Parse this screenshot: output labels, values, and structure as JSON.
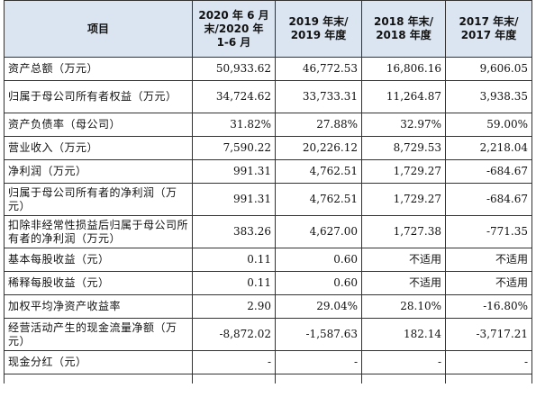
{
  "header": {
    "item": "项目",
    "col1": "2020 年 6 月\n末/2020 年\n1-6 月",
    "col2": "2019 年末/\n2019 年度",
    "col3": "2018 年末/\n2018 年度",
    "col4": "2017 年末/\n2017 年度"
  },
  "rows": [
    {
      "label": "资产总额（万元）",
      "v": [
        "50,933.62",
        "46,772.53",
        "16,806.16",
        "9,606.05"
      ]
    },
    {
      "label": "归属于母公司所有者权益（万元）",
      "v": [
        "34,724.62",
        "33,733.31",
        "11,264.87",
        "3,938.35"
      ]
    },
    {
      "label": "资产负债率（母公司）",
      "v": [
        "31.82%",
        "27.88%",
        "32.97%",
        "59.00%"
      ]
    },
    {
      "label": "营业收入（万元）",
      "v": [
        "7,590.22",
        "20,226.12",
        "8,729.53",
        "2,218.04"
      ]
    },
    {
      "label": "净利润（万元）",
      "v": [
        "991.31",
        "4,762.51",
        "1,729.27",
        "-684.67"
      ]
    },
    {
      "label": "归属于母公司所有者的净利润（万元）",
      "v": [
        "991.31",
        "4,762.51",
        "1,729.27",
        "-684.67"
      ]
    },
    {
      "label": "扣除非经常性损益后归属于母公司所有者的净利润（万元）",
      "v": [
        "383.26",
        "4,627.00",
        "1,727.38",
        "-771.35"
      ]
    },
    {
      "label": "基本每股收益（元）",
      "v": [
        "0.11",
        "0.60",
        "不适用",
        "不适用"
      ]
    },
    {
      "label": "稀释每股收益（元）",
      "v": [
        "0.11",
        "0.60",
        "不适用",
        "不适用"
      ]
    },
    {
      "label": "加权平均净资产收益率",
      "v": [
        "2.90",
        "29.04%",
        "28.10%",
        "-16.80%"
      ]
    },
    {
      "label": "经营活动产生的现金流量净额（万元）",
      "v": [
        "-8,872.02",
        "-1,587.63",
        "182.14",
        "-3,717.21"
      ]
    },
    {
      "label": "现金分红（元）",
      "v": [
        "-",
        "-",
        "-",
        "-"
      ]
    }
  ]
}
